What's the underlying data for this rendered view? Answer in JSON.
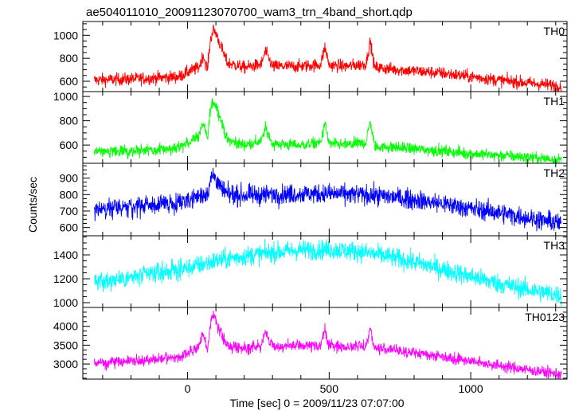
{
  "title": "ae504011010_20091123070700_wam3_trn_4band_short.qdp",
  "xlabel": "Time [sec] 0 = 2009/11/23 07:07:00",
  "ylabel": "Counts/sec",
  "chart_data": {
    "type": "line",
    "title": "ae504011010_20091123070700_wam3_trn_4band_short.qdp",
    "xlabel": "Time [sec] 0 = 2009/11/23 07:07:00",
    "ylabel": "Counts/sec",
    "xlim": [
      -370,
      1340
    ],
    "x_range": [
      -330,
      1320
    ],
    "xticks": [
      0,
      500,
      1000
    ],
    "xtick_labels": [
      "0",
      "500",
      "1000"
    ],
    "panels": [
      {
        "name": "TH0",
        "color": "#ff0000",
        "ylim": [
          510,
          1120
        ],
        "yticks": [
          600,
          800,
          1000
        ],
        "ytick_labels": [
          "600",
          "800",
          "1000"
        ],
        "x": [
          -330,
          -200,
          -100,
          -30,
          0,
          40,
          55,
          70,
          80,
          90,
          100,
          115,
          140,
          200,
          260,
          275,
          300,
          400,
          470,
          485,
          500,
          560,
          630,
          645,
          660,
          700,
          800,
          900,
          1000,
          1100,
          1200,
          1320
        ],
        "y": [
          610,
          620,
          630,
          640,
          680,
          720,
          830,
          700,
          950,
          1050,
          1020,
          920,
          760,
          720,
          745,
          860,
          730,
          730,
          745,
          900,
          740,
          730,
          750,
          950,
          720,
          710,
          690,
          670,
          640,
          610,
          585,
          560
        ],
        "noise": 28
      },
      {
        "name": "TH1",
        "color": "#00ff00",
        "ylim": [
          450,
          1040
        ],
        "yticks": [
          600,
          800,
          1000
        ],
        "ytick_labels": [
          "600",
          "800",
          "1000"
        ],
        "x": [
          -330,
          -200,
          -100,
          -30,
          0,
          40,
          55,
          70,
          80,
          90,
          100,
          115,
          140,
          200,
          260,
          275,
          300,
          400,
          470,
          485,
          500,
          560,
          630,
          645,
          660,
          700,
          800,
          900,
          1000,
          1100,
          1200,
          1320
        ],
        "y": [
          540,
          550,
          560,
          575,
          620,
          680,
          780,
          640,
          880,
          960,
          930,
          830,
          640,
          600,
          630,
          740,
          610,
          600,
          620,
          780,
          610,
          600,
          620,
          800,
          590,
          585,
          570,
          550,
          530,
          515,
          500,
          480
        ],
        "noise": 24
      },
      {
        "name": "TH2",
        "color": "#0000ff",
        "ylim": [
          550,
          990
        ],
        "yticks": [
          600,
          700,
          800,
          900
        ],
        "ytick_labels": [
          "600",
          "700",
          "800",
          "900"
        ],
        "x": [
          -330,
          -200,
          -100,
          -30,
          0,
          40,
          70,
          80,
          90,
          100,
          115,
          140,
          200,
          300,
          400,
          500,
          600,
          700,
          800,
          900,
          1000,
          1100,
          1200,
          1320
        ],
        "y": [
          710,
          725,
          740,
          755,
          770,
          790,
          810,
          880,
          920,
          900,
          840,
          800,
          795,
          800,
          805,
          805,
          800,
          790,
          770,
          745,
          715,
          690,
          660,
          625
        ],
        "noise": 30
      },
      {
        "name": "TH3",
        "color": "#00ffff",
        "ylim": [
          960,
          1560
        ],
        "yticks": [
          1000,
          1200,
          1400
        ],
        "ytick_labels": [
          "1000",
          "1200",
          "1400"
        ],
        "x": [
          -330,
          -200,
          -100,
          0,
          100,
          200,
          300,
          400,
          500,
          600,
          700,
          800,
          900,
          1000,
          1100,
          1200,
          1320
        ],
        "y": [
          1170,
          1210,
          1250,
          1290,
          1350,
          1390,
          1420,
          1440,
          1445,
          1430,
          1390,
          1340,
          1280,
          1220,
          1160,
          1110,
          1060
        ],
        "noise": 42
      },
      {
        "name": "TH0123",
        "color": "#ff00ff",
        "ylim": [
          2600,
          4500
        ],
        "yticks": [
          3000,
          3500,
          4000
        ],
        "ytick_labels": [
          "3000",
          "3500",
          "4000"
        ],
        "x": [
          -330,
          -200,
          -100,
          -30,
          0,
          40,
          55,
          70,
          80,
          90,
          100,
          115,
          140,
          200,
          260,
          275,
          300,
          400,
          470,
          485,
          500,
          560,
          630,
          645,
          660,
          700,
          800,
          900,
          1000,
          1100,
          1200,
          1320
        ],
        "y": [
          3030,
          3080,
          3130,
          3180,
          3300,
          3450,
          3800,
          3350,
          4050,
          4300,
          4200,
          3850,
          3480,
          3430,
          3480,
          3850,
          3470,
          3480,
          3500,
          3900,
          3480,
          3460,
          3480,
          3950,
          3420,
          3400,
          3300,
          3200,
          3080,
          2960,
          2850,
          2730
        ],
        "noise": 75
      }
    ]
  }
}
